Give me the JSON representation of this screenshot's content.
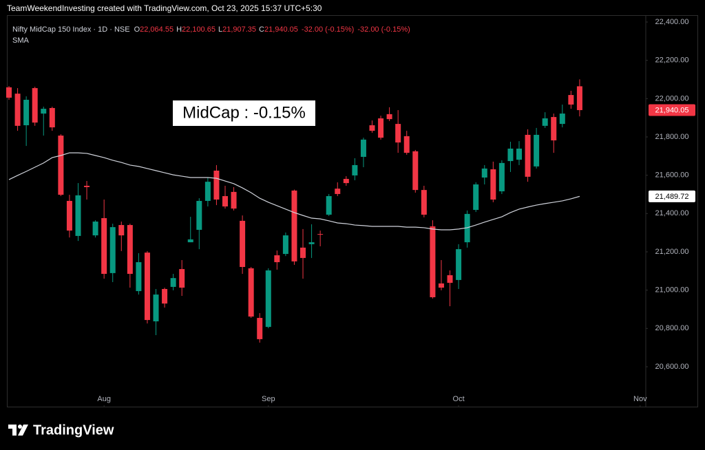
{
  "chart_data": {
    "type": "candlestick",
    "attribution": "TeamWeekendInvesting created with TradingView.com, Oct 23, 2025 15:37 UTC+5:30",
    "title": "Nifty MidCap 150 Index · 1D · NSE",
    "ohlc_legend": [
      {
        "key": "O",
        "value": "22,064.55"
      },
      {
        "key": "H",
        "value": "22,100.65"
      },
      {
        "key": "L",
        "value": "21,907.35"
      },
      {
        "key": "C",
        "value": "21,940.05"
      }
    ],
    "change_labels": [
      "-32.00 (-0.15%)",
      "-32.00 (-0.15%)"
    ],
    "annotation": "MidCap : -0.15%",
    "brand": "TradingView",
    "colors": {
      "up": "#089981",
      "down": "#f23645"
    },
    "ohlc": {
      "open": [
        22059,
        22026,
        21861,
        22055,
        21922,
        21951,
        21807,
        21466,
        21283,
        21545,
        21286,
        21376,
        21089,
        21340,
        21340,
        20995,
        21196,
        20837,
        21006,
        21017,
        21110,
        21250,
        21315,
        21466,
        21624,
        21491,
        21513,
        21362,
        21114,
        20855,
        20808,
        21182,
        21189,
        21520,
        21222,
        21240,
        21293,
        21394,
        21530,
        21581,
        21599,
        21696,
        21861,
        21897,
        21919,
        21868,
        21804,
        21725,
        21523,
        21333,
        21035,
        21078,
        21053,
        21250,
        21419,
        21588,
        21631,
        21516,
        21674,
        21681,
        21811,
        21646,
        21858,
        21904,
        21868,
        22019,
        22064.55
      ],
      "high": [
        22066,
        22055,
        22012,
        22062,
        21958,
        21958,
        21814,
        21498,
        21559,
        21570,
        21365,
        21473,
        21347,
        21358,
        21347,
        21193,
        21204,
        21006,
        21013,
        21085,
        21157,
        21383,
        21480,
        21588,
        21653,
        21545,
        21538,
        21390,
        21121,
        20880,
        21114,
        21207,
        21301,
        21525,
        21319,
        21344,
        21311,
        21502,
        21563,
        21595,
        21689,
        21796,
        21886,
        21911,
        21955,
        21940,
        21832,
        21732,
        21545,
        21365,
        21157,
        21103,
        21240,
        21416,
        21563,
        21653,
        21671,
        21678,
        21775,
        21778,
        21840,
        21847,
        21929,
        21922,
        21969,
        22041,
        22100.65
      ],
      "low": [
        21994,
        21832,
        21753,
        21858,
        21807,
        21832,
        21491,
        21275,
        21257,
        21473,
        21275,
        21060,
        21042,
        21204,
        21013,
        20977,
        20826,
        20765,
        20909,
        20999,
        20970,
        21250,
        21214,
        21437,
        21444,
        21426,
        21416,
        21085,
        20855,
        20726,
        20801,
        21107,
        21178,
        21132,
        21060,
        21168,
        21229,
        21387,
        21491,
        21545,
        21574,
        21642,
        21822,
        21786,
        21883,
        21717,
        21707,
        21509,
        21380,
        20956,
        20999,
        20916,
        21006,
        21222,
        21408,
        21552,
        21459,
        21502,
        21617,
        21653,
        21566,
        21635,
        21847,
        21717,
        21850,
        21947,
        21907.35
      ],
      "close": [
        22005,
        21858,
        21994,
        21875,
        21947,
        21850,
        21498,
        21311,
        21495,
        21538,
        21358,
        21085,
        21329,
        21286,
        21085,
        21146,
        20844,
        20977,
        20930,
        21063,
        21013,
        21265,
        21466,
        21566,
        21473,
        21437,
        21426,
        21121,
        20862,
        20744,
        21103,
        21146,
        21286,
        21150,
        21168,
        21250,
        21290,
        21491,
        21502,
        21559,
        21653,
        21786,
        21832,
        21796,
        21893,
        21771,
        21717,
        21523,
        21394,
        20963,
        21013,
        21038,
        21214,
        21398,
        21552,
        21635,
        21473,
        21664,
        21739,
        21739,
        21592,
        21811,
        21897,
        21782,
        21922,
        21969,
        21940.05
      ],
      "last_label": "21,940.05"
    },
    "sma": {
      "name": "SMA",
      "color": "#d1d4dc",
      "values": [
        21577,
        21599,
        21620,
        21642,
        21664,
        21692,
        21703,
        21717,
        21717,
        21714,
        21703,
        21692,
        21678,
        21667,
        21653,
        21646,
        21635,
        21624,
        21613,
        21602,
        21595,
        21588,
        21588,
        21588,
        21584,
        21570,
        21556,
        21534,
        21509,
        21480,
        21459,
        21441,
        21423,
        21405,
        21390,
        21376,
        21372,
        21362,
        21351,
        21347,
        21340,
        21337,
        21333,
        21333,
        21333,
        21333,
        21329,
        21329,
        21326,
        21319,
        21315,
        21315,
        21319,
        21326,
        21340,
        21355,
        21369,
        21383,
        21405,
        21423,
        21434,
        21444,
        21452,
        21459,
        21466,
        21477,
        21489.72
      ],
      "last_label": "21,489.72"
    },
    "xlim": [
      -0.24,
      73.65
    ],
    "xticks": [
      {
        "value": 11,
        "label": "Aug"
      },
      {
        "value": 30,
        "label": "Sep"
      },
      {
        "value": 52,
        "label": "Oct"
      },
      {
        "value": 73,
        "label": "Nov"
      }
    ],
    "ylim": [
      20388,
      22436
    ],
    "yticks": [
      {
        "value": 20600,
        "label": "20,600.00"
      },
      {
        "value": 20800,
        "label": "20,800.00"
      },
      {
        "value": 21000,
        "label": "21,000.00"
      },
      {
        "value": 21200,
        "label": "21,200.00"
      },
      {
        "value": 21400,
        "label": "21,400.00"
      },
      {
        "value": 21600,
        "label": "21,600.00"
      },
      {
        "value": 21800,
        "label": "21,800.00"
      },
      {
        "value": 22000,
        "label": "22,000.00"
      },
      {
        "value": 22200,
        "label": "22,200.00"
      },
      {
        "value": 22400,
        "label": "22,400.00"
      }
    ],
    "grid": false
  }
}
